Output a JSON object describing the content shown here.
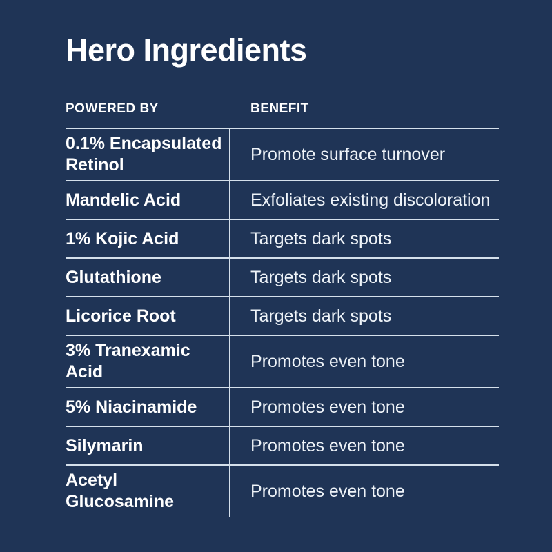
{
  "title": "Hero Ingredients",
  "colors": {
    "background": "#1f3456",
    "divider": "#d5e0eb",
    "heading_text": "#ffffff",
    "benefit_text": "#eef3f8"
  },
  "chart_data": {
    "type": "table",
    "title": "Hero Ingredients",
    "columns": [
      "POWERED BY",
      "BENEFIT"
    ],
    "rows": [
      {
        "powered_by": "0.1% Encapsulated Retinol",
        "benefit": "Promote surface turnover"
      },
      {
        "powered_by": "Mandelic Acid",
        "benefit": "Exfoliates existing discoloration"
      },
      {
        "powered_by": "1% Kojic Acid",
        "benefit": "Targets dark spots"
      },
      {
        "powered_by": "Glutathione",
        "benefit": "Targets dark spots"
      },
      {
        "powered_by": "Licorice Root",
        "benefit": "Targets dark spots"
      },
      {
        "powered_by": "3% Tranexamic Acid",
        "benefit": "Promotes even tone"
      },
      {
        "powered_by": "5% Niacinamide",
        "benefit": "Promotes even tone"
      },
      {
        "powered_by": "Silymarin",
        "benefit": "Promotes even tone"
      },
      {
        "powered_by": "Acetyl Glucosamine",
        "benefit": "Promotes even tone"
      }
    ]
  }
}
